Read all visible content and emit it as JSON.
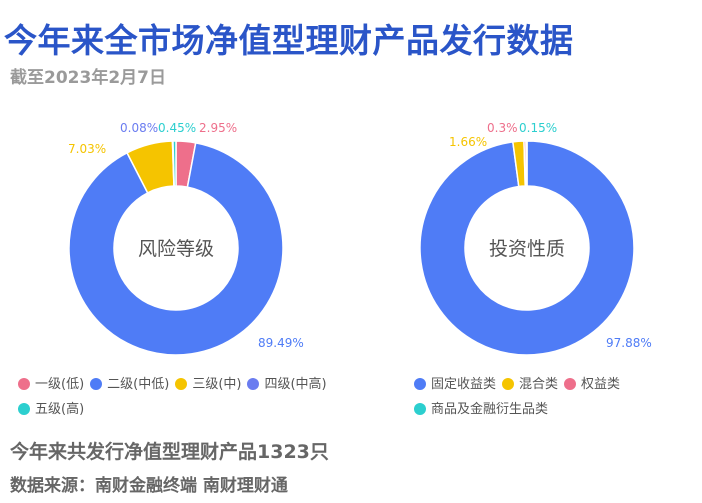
{
  "header": {
    "title": "今年来全市场净值型理财产品发行数据",
    "subtitle": "截至2023年2月7日"
  },
  "chart_data": [
    {
      "type": "pie",
      "center_label": "风险等级",
      "categories": [
        "一级(低)",
        "二级(中低)",
        "三级(中)",
        "四级(中高)",
        "五级(高)"
      ],
      "values": [
        2.95,
        89.49,
        7.03,
        0.08,
        0.45
      ],
      "value_labels": [
        "2.95%",
        "89.49%",
        "7.03%",
        "0.08%",
        "0.45%"
      ],
      "colors": [
        "#ee6f8b",
        "#4f7cf6",
        "#f5c400",
        "#6a7cf0",
        "#2ccfcf"
      ],
      "legend_position": "bottom"
    },
    {
      "type": "pie",
      "center_label": "投资性质",
      "categories": [
        "固定收益类",
        "混合类",
        "权益类",
        "商品及金融衍生品类"
      ],
      "values": [
        97.88,
        1.66,
        0.3,
        0.15
      ],
      "value_labels": [
        "97.88%",
        "1.66%",
        "0.3%",
        "0.15%"
      ],
      "colors": [
        "#4f7cf6",
        "#f5c400",
        "#ee6f8b",
        "#2ccfcf"
      ],
      "legend_position": "bottom"
    }
  ],
  "footer": {
    "count_text": "今年来共发行净值型理财产品1323只",
    "source_text": "数据来源：南财金融终端 南财理财通"
  }
}
